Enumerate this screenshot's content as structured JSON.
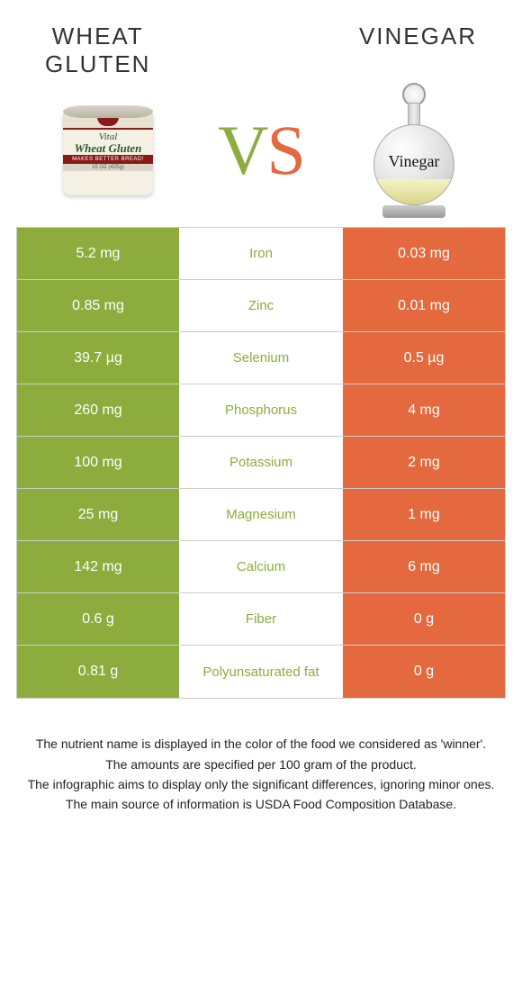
{
  "colors": {
    "left": "#8cac3d",
    "right": "#e4693e"
  },
  "header": {
    "left_title": "Wheat\ngluten",
    "right_title": "Vinegar",
    "vs_v": "V",
    "vs_s": "S",
    "bottle_label": "Vinegar",
    "can_line1": "Vital",
    "can_line2": "Wheat Gluten",
    "can_band": "MAKES BETTER BREAD!",
    "can_bottom": "15 OZ (425g)"
  },
  "rows": [
    {
      "left": "5.2 mg",
      "label": "Iron",
      "right": "0.03 mg",
      "winner": "left"
    },
    {
      "left": "0.85 mg",
      "label": "Zinc",
      "right": "0.01 mg",
      "winner": "left"
    },
    {
      "left": "39.7 µg",
      "label": "Selenium",
      "right": "0.5 µg",
      "winner": "left"
    },
    {
      "left": "260 mg",
      "label": "Phosphorus",
      "right": "4 mg",
      "winner": "left"
    },
    {
      "left": "100 mg",
      "label": "Potassium",
      "right": "2 mg",
      "winner": "left"
    },
    {
      "left": "25 mg",
      "label": "Magnesium",
      "right": "1 mg",
      "winner": "left"
    },
    {
      "left": "142 mg",
      "label": "Calcium",
      "right": "6 mg",
      "winner": "left"
    },
    {
      "left": "0.6 g",
      "label": "Fiber",
      "right": "0 g",
      "winner": "left"
    },
    {
      "left": "0.81 g",
      "label": "Polyunsaturated fat",
      "right": "0 g",
      "winner": "left"
    }
  ],
  "footnotes": [
    "The nutrient name is displayed in the color of the food we considered as 'winner'.",
    "The amounts are specified per 100 gram of the product.",
    "The infographic aims to display only the significant differences, ignoring minor ones.",
    "The main source of information is USDA Food Composition Database."
  ]
}
